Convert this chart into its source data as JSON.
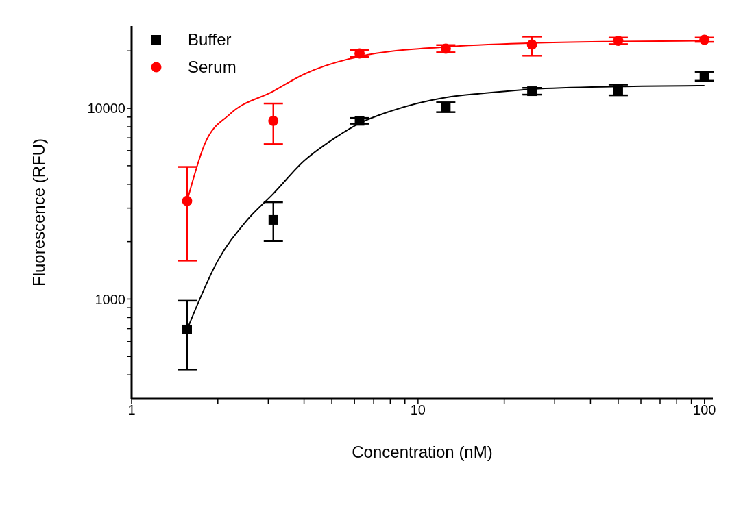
{
  "chart_data": {
    "type": "scatter",
    "xlabel": "Concentration (nM)",
    "ylabel": "Fluorescence (RFU)",
    "log": "xy",
    "grid": false,
    "legend": "top left",
    "xlim": [
      1,
      107
    ],
    "ylim": [
      300,
      27000
    ],
    "xticks": [
      1,
      {
        "value": 2,
        "label": null
      },
      {
        "value": 3,
        "label": null
      },
      {
        "value": 4,
        "label": null
      },
      {
        "value": 5,
        "label": null
      },
      {
        "value": 6,
        "label": null
      },
      {
        "value": 7,
        "label": null
      },
      {
        "value": 8,
        "label": null
      },
      {
        "value": 9,
        "label": null
      },
      10,
      {
        "value": 20,
        "label": null
      },
      {
        "value": 30,
        "label": null
      },
      {
        "value": 40,
        "label": null
      },
      {
        "value": 50,
        "label": null
      },
      {
        "value": 60,
        "label": null
      },
      {
        "value": 70,
        "label": null
      },
      {
        "value": 80,
        "label": null
      },
      {
        "value": 90,
        "label": null
      },
      100
    ],
    "yticks": [
      {
        "value": 400,
        "label": null
      },
      {
        "value": 500,
        "label": null
      },
      {
        "value": 600,
        "label": null
      },
      {
        "value": 700,
        "label": null
      },
      {
        "value": 800,
        "label": null
      },
      {
        "value": 900,
        "label": null
      },
      1000,
      {
        "value": 2000,
        "label": null
      },
      {
        "value": 3000,
        "label": null
      },
      {
        "value": 4000,
        "label": null
      },
      {
        "value": 5000,
        "label": null
      },
      {
        "value": 6000,
        "label": null
      },
      {
        "value": 7000,
        "label": null
      },
      {
        "value": 8000,
        "label": null
      },
      {
        "value": 9000,
        "label": null
      },
      10000,
      {
        "value": 20000,
        "label": null
      }
    ],
    "series": [
      {
        "name": "Buffer",
        "marker": "square",
        "color": "#000000",
        "x": [
          1.5625,
          3.125,
          6.25,
          12.5,
          25,
          50,
          100
        ],
        "values": [
          692,
          2600,
          8600,
          10150,
          12300,
          12500,
          14750
        ],
        "errors": [
          [
            427,
            980
          ],
          [
            2015,
            3220
          ],
          [
            8300,
            8900
          ],
          [
            9550,
            10750
          ],
          [
            11800,
            12800
          ],
          [
            11700,
            13300
          ],
          [
            13950,
            15550
          ]
        ]
      },
      {
        "name": "Serum",
        "marker": "circle",
        "color": "#ff0000",
        "x": [
          1.5625,
          3.125,
          6.25,
          12.5,
          25,
          50,
          100
        ],
        "values": [
          3270,
          8600,
          19400,
          20560,
          21600,
          22600,
          22900
        ],
        "errors": [
          [
            1590,
            4930
          ],
          [
            6490,
            10600
          ],
          [
            18600,
            20200
          ],
          [
            19660,
            21460
          ],
          [
            18870,
            23770
          ],
          [
            21700,
            23500
          ],
          [
            22300,
            23500
          ]
        ]
      },
      {
        "type": "line",
        "color": "#000000",
        "x": [
          1.5625,
          2,
          2.5,
          3.125,
          4,
          5,
          6.25,
          8,
          12.5,
          17,
          25,
          50,
          100
        ],
        "values": [
          692,
          1590,
          2540,
          3570,
          5300,
          6820,
          8350,
          9650,
          11400,
          12000,
          12600,
          13000,
          13150
        ]
      },
      {
        "type": "line",
        "color": "#ff0000",
        "x": [
          1.5625,
          1.8,
          2.2,
          3.125,
          4,
          6.25,
          12.5,
          25,
          50,
          100
        ],
        "values": [
          3270,
          6500,
          9300,
          12300,
          15100,
          18700,
          21000,
          22000,
          22400,
          22600
        ]
      }
    ]
  }
}
